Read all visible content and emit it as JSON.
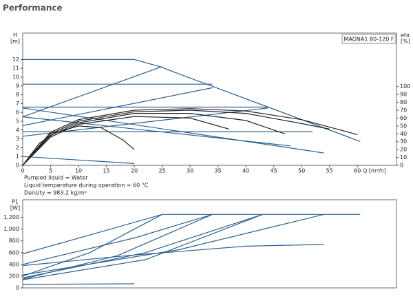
{
  "header": {
    "title": "Performance"
  },
  "notes": [
    "Pumped liquid = Water",
    "Liquid temperature during operation = 60 °C",
    "Density = 983.2 kg/m³"
  ],
  "chart_data": [
    {
      "type": "line",
      "annotation": "MAGNA1 80-120 F",
      "ylabel": "H",
      "yunit": "[m]",
      "y2label": "eta",
      "y2unit": "[%]",
      "xlabel": "Q [m³/h]",
      "xlim": [
        0,
        67
      ],
      "xticks": [
        0,
        5,
        10,
        15,
        20,
        25,
        30,
        35,
        40,
        45,
        50,
        55,
        60
      ],
      "ylim": [
        0,
        15
      ],
      "yticks": [
        0,
        1,
        2,
        3,
        4,
        5,
        6,
        7,
        8,
        9,
        10,
        11,
        12
      ],
      "y2lim": [
        0,
        168
      ],
      "y2ticks": [
        0,
        10,
        20,
        30,
        40,
        50,
        60,
        70,
        80,
        90,
        100
      ],
      "series": [
        {
          "color": "#2b5f8e",
          "x": [
            0,
            20,
            24.5,
            60.5
          ],
          "values": [
            12,
            12,
            11.2,
            2.7
          ]
        },
        {
          "color": "#2b5f8e",
          "x": [
            0,
            25
          ],
          "values": [
            5.5,
            11.2
          ]
        },
        {
          "color": "#2b5f8e",
          "x": [
            0,
            34
          ],
          "values": [
            9.2,
            9.2
          ]
        },
        {
          "color": "#2b5f8e",
          "x": [
            0,
            34
          ],
          "values": [
            4.5,
            8.8
          ]
        },
        {
          "color": "#2b5f8e",
          "x": [
            0,
            44
          ],
          "values": [
            6.6,
            6.6
          ]
        },
        {
          "color": "#2b5f8e",
          "x": [
            0,
            44
          ],
          "values": [
            3.3,
            6.5
          ]
        },
        {
          "color": "#2b5f8e",
          "x": [
            0,
            52
          ],
          "values": [
            3.8,
            3.8
          ]
        },
        {
          "color": "#2b5f8e",
          "x": [
            0,
            54
          ],
          "values": [
            6.5,
            1.4
          ]
        },
        {
          "color": "#2b5f8e",
          "x": [
            0,
            48
          ],
          "values": [
            5.5,
            2.2
          ]
        },
        {
          "color": "#2b5f8e",
          "x": [
            0,
            20
          ],
          "values": [
            1,
            0.2
          ]
        },
        {
          "color": "#222222",
          "axis": "y2",
          "x": [
            0,
            3,
            6,
            10,
            14,
            18,
            20
          ],
          "values": [
            0,
            28,
            42,
            50,
            48,
            32,
            20
          ]
        },
        {
          "color": "#222222",
          "axis": "y2",
          "x": [
            0,
            5,
            10,
            20,
            30,
            40,
            50,
            60
          ],
          "values": [
            0,
            42,
            58,
            70,
            72,
            69,
            58,
            39
          ]
        },
        {
          "color": "#222222",
          "axis": "y2",
          "x": [
            0,
            5,
            10,
            20,
            30,
            40,
            50,
            55
          ],
          "values": [
            0,
            40,
            56,
            68,
            70,
            66,
            53,
            46
          ]
        },
        {
          "color": "#222222",
          "axis": "y2",
          "x": [
            0,
            5,
            10,
            20,
            30,
            40,
            47
          ],
          "values": [
            0,
            38,
            54,
            66,
            66,
            57,
            40
          ]
        },
        {
          "color": "#222222",
          "axis": "y2",
          "x": [
            0,
            5,
            10,
            20,
            30,
            37
          ],
          "values": [
            0,
            36,
            52,
            62,
            60,
            46
          ]
        }
      ]
    },
    {
      "type": "line",
      "ylabel": "P1",
      "yunit": "[W]",
      "xlim": [
        0,
        67
      ],
      "ylim": [
        0,
        1500
      ],
      "yticks": [
        0,
        200,
        400,
        600,
        800,
        {
          "value": 1000,
          "label": "1,000"
        },
        {
          "value": 1200,
          "label": "1,200"
        }
      ],
      "series": [
        {
          "color": "#2b5f8e",
          "x": [
            0,
            12,
            25,
            60.5
          ],
          "values": [
            580,
            900,
            1250,
            1250
          ]
        },
        {
          "color": "#2b5f8e",
          "x": [
            0,
            12,
            25
          ],
          "values": [
            200,
            600,
            1250
          ]
        },
        {
          "color": "#2b5f8e",
          "x": [
            0,
            17,
            34
          ],
          "values": [
            150,
            550,
            1250
          ]
        },
        {
          "color": "#2b5f8e",
          "x": [
            0,
            20,
            34
          ],
          "values": [
            400,
            850,
            1250
          ]
        },
        {
          "color": "#2b5f8e",
          "x": [
            0,
            22,
            43
          ],
          "values": [
            170,
            600,
            1250
          ]
        },
        {
          "color": "#2b5f8e",
          "x": [
            0,
            22,
            43
          ],
          "values": [
            140,
            480,
            1250
          ]
        },
        {
          "color": "#2b5f8e",
          "x": [
            0,
            28,
            54
          ],
          "values": [
            220,
            650,
            1250
          ]
        },
        {
          "color": "#2b5f8e",
          "x": [
            0,
            20,
            40,
            54
          ],
          "values": [
            380,
            560,
            710,
            740
          ]
        },
        {
          "color": "#2b5f8e",
          "x": [
            0,
            20
          ],
          "values": [
            60,
            70
          ]
        }
      ]
    }
  ]
}
